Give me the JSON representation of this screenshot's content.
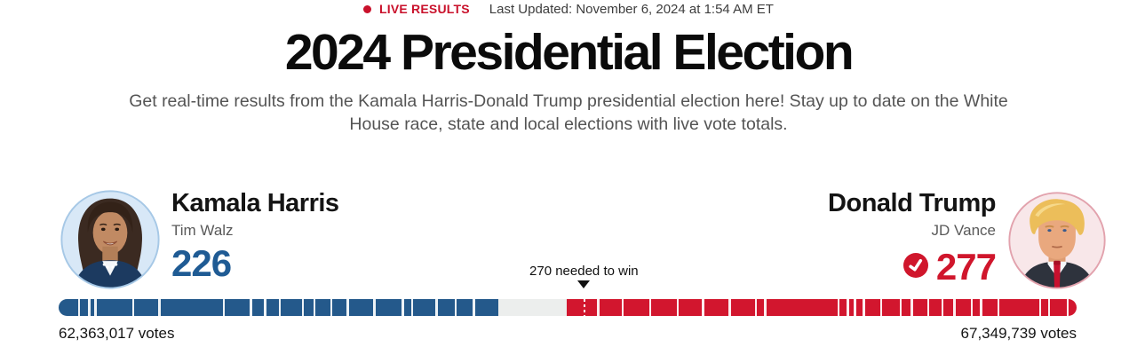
{
  "header": {
    "live_label": "LIVE RESULTS",
    "last_updated": "Last Updated: November 6, 2024 at 1:54 AM ET",
    "title": "2024 Presidential Election",
    "subtitle": "Get real-time results from the Kamala Harris-Donald Trump presidential election here! Stay up to date on the White House race, state and local elections with live vote totals."
  },
  "candidates": {
    "harris": {
      "name": "Kamala Harris",
      "running_mate": "Tim Walz",
      "electoral_votes_display": "226",
      "votes_label": "62,363,017 votes"
    },
    "trump": {
      "name": "Donald Trump",
      "running_mate": "JD Vance",
      "electoral_votes_display": "277",
      "votes_label": "67,349,739 votes",
      "winner_check": true
    }
  },
  "colors": {
    "live_red": "#C9112B",
    "harris_blue_text": "#1F5B94",
    "trump_red_text": "#D0162C",
    "bar_blue": "#24598B",
    "bar_red": "#D2162E",
    "bar_uncalled": "#ECEEED",
    "title_black": "#0B0B0B",
    "subtitle_gray": "#545454"
  },
  "icons": {
    "live_dot": "red-dot-icon",
    "winner_check": "checkmark-circle-icon",
    "marker_arrow": "down-triangle-icon"
  },
  "chart_data": {
    "type": "bar",
    "title": "Electoral college results bar",
    "total_electoral_votes": 538,
    "needed_to_win": 270,
    "marker_label": "270 needed to win",
    "series": [
      {
        "name": "Kamala Harris",
        "electoral_votes": 226,
        "popular_votes": 62363017,
        "color": "#24598B"
      },
      {
        "name": "Donald Trump",
        "electoral_votes": 277,
        "popular_votes": 67349739,
        "color": "#D2162E"
      }
    ],
    "uncalled_electoral_votes": 35,
    "layout": {
      "harris_segment_pct": 43.2,
      "uncalled_segment_pct": 6.7,
      "trump_segment_pct": 50.1,
      "marker_pct": 51.6,
      "uncalled_color": "#ECEEED",
      "harris_ticks_pct": [
        1.9,
        2.9,
        3.5,
        7.2,
        9.8,
        16.1,
        18.8,
        20.2,
        21.6,
        23.9,
        25.0,
        26.7,
        28.3,
        30.9,
        33.7,
        34.6,
        37.0,
        38.9,
        40.7
      ],
      "trump_ticks_pct": [
        52.9,
        55.3,
        58.0,
        60.7,
        63.2,
        65.8,
        68.4,
        69.3,
        76.5,
        77.4,
        78.1,
        79.0,
        80.7,
        82.6,
        83.7,
        85.3,
        86.7,
        87.9,
        89.6,
        90.5,
        92.2,
        96.3,
        97.2,
        99.0
      ]
    }
  }
}
